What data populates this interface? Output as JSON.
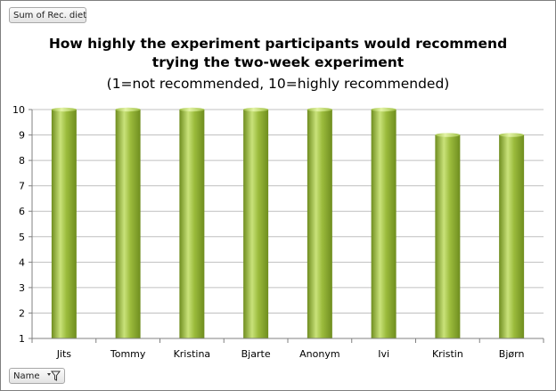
{
  "field_buttons": {
    "values_field": "Sum of Rec. diet",
    "axis_field": "Name",
    "axis_filter_icon": "dropdown-filter-icon"
  },
  "colors": {
    "bar_fill": "#9bbb3c",
    "bar_highlight": "#c9e27a",
    "bar_dark": "#6f8d1f",
    "gridline": "#c0c0c0"
  },
  "chart_data": {
    "type": "bar",
    "title_line1": "How highly the experiment participants would recommend",
    "title_line2": "trying the two-week experiment",
    "subtitle": "(1=not recommended, 10=highly recommended)",
    "categories": [
      "Jits",
      "Tommy",
      "Kristina",
      "Bjarte",
      "Anonym",
      "Ivi",
      "Kristin",
      "Bjørn"
    ],
    "values": [
      10,
      10,
      10,
      10,
      10,
      10,
      9,
      9
    ],
    "ylim": [
      1,
      10
    ],
    "yticks": [
      1,
      2,
      3,
      4,
      5,
      6,
      7,
      8,
      9,
      10
    ],
    "grid": true,
    "legend": "none"
  }
}
